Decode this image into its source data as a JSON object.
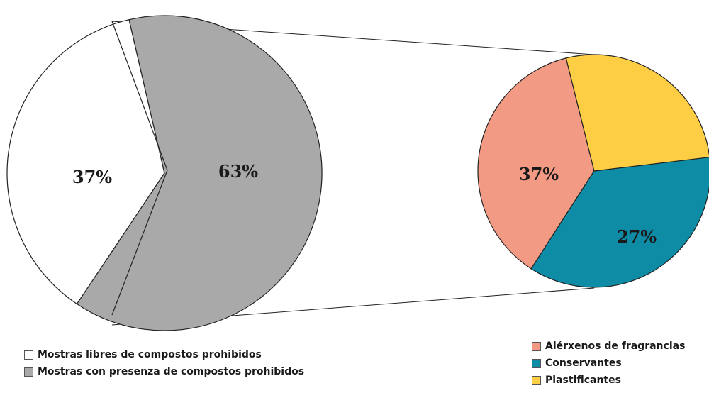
{
  "chart_data": [
    {
      "type": "pie",
      "slices": [
        {
          "label": "Mostras libres de compostos prohibidos",
          "value": 37,
          "value_label": "37%",
          "color": "#ffffff"
        },
        {
          "label": "Mostras con presenza de compostos prohibidos",
          "value": 63,
          "value_label": "63%",
          "color": "#a9a9a9"
        }
      ]
    },
    {
      "type": "pie",
      "slices": [
        {
          "label": "Alérxenos de fragrancias",
          "value": 37,
          "value_label": "37%",
          "color": "#f29a84"
        },
        {
          "label": "Conservantes",
          "value": 36,
          "value_label": "36%",
          "color": "#0e8ba5"
        },
        {
          "label": "Plastificantes",
          "value": 27,
          "value_label": "27%",
          "color": "#fdcd44"
        }
      ]
    }
  ],
  "legend_left": [
    {
      "label": "Mostras libres de compostos prohibidos",
      "color": "#ffffff"
    },
    {
      "label": "Mostras con presenza de compostos prohibidos",
      "color": "#a9a9a9"
    }
  ],
  "legend_right": [
    {
      "label": "Alérxenos de fragrancias",
      "color": "#f29a84"
    },
    {
      "label": "Conservantes",
      "color": "#0e8ba5"
    },
    {
      "label": "Plastificantes",
      "color": "#fdcd44"
    }
  ]
}
